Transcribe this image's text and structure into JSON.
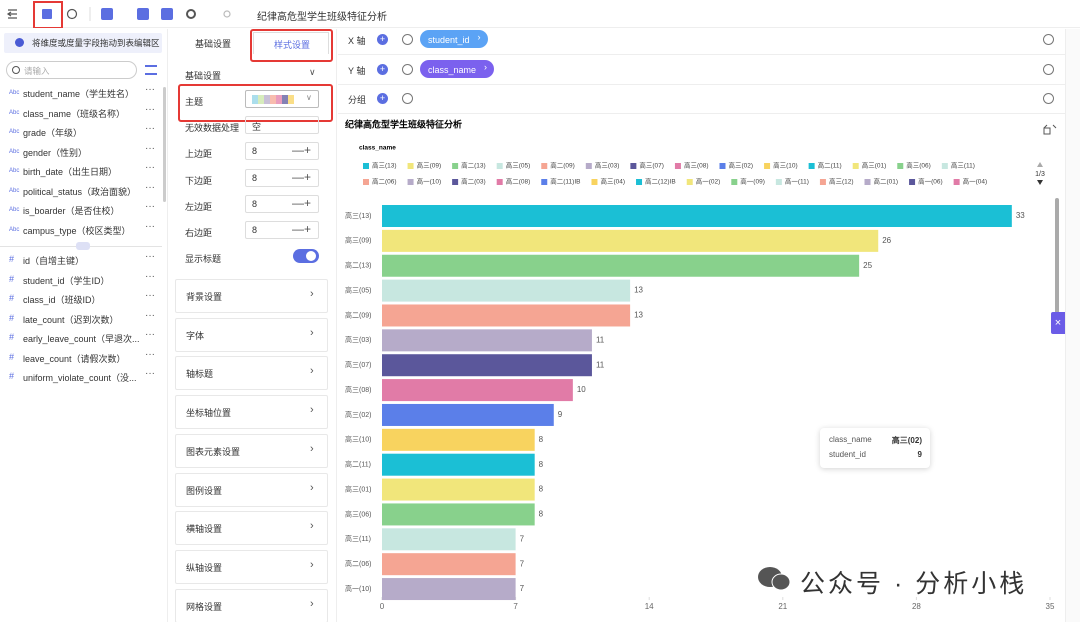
{
  "toolbar": {
    "title": "纪律高危型学生班级特征分析"
  },
  "fields": {
    "hint": "将维度或度量字段拖动到表编辑区",
    "search_placeholder": "请输入",
    "dimension_type": "Abc",
    "dimensions": [
      "student_name（学生姓名）",
      "class_name（班级名称）",
      "grade（年级）",
      "gender（性别）",
      "birth_date（出生日期）",
      "political_status（政治面貌）",
      "is_boarder（是否住校）",
      "campus_type（校区类型）"
    ],
    "measures": [
      "id（自增主键）",
      "student_id（学生ID）",
      "class_id（班级ID）",
      "late_count（迟到次数）",
      "early_leave_count（早退次...",
      "leave_count（请假次数）",
      "uniform_violate_count（没..."
    ]
  },
  "settings": {
    "tabs": [
      "基础设置",
      "样式设置"
    ],
    "section": "基础设置",
    "rows": [
      {
        "label": "主题"
      },
      {
        "label": "无效数据处理",
        "value": "空"
      },
      {
        "label": "上边距",
        "value": 8
      },
      {
        "label": "下边距",
        "value": 8
      },
      {
        "label": "左边距",
        "value": 8
      },
      {
        "label": "右边距",
        "value": 8
      },
      {
        "label": "显示标题"
      }
    ],
    "groups": [
      "背景设置",
      "字体",
      "轴标题",
      "坐标轴位置",
      "图表元素设置",
      "图例设置",
      "横轴设置",
      "纵轴设置",
      "网格设置"
    ]
  },
  "encoding": {
    "x_label": "X 轴",
    "x_field": "student_id",
    "y_label": "Y 轴",
    "y_field": "class_name",
    "group_label": "分组"
  },
  "chart_data": {
    "type": "bar",
    "orientation": "horizontal",
    "title": "纪律高危型学生班级特征分析",
    "legend_title": "class_name",
    "legend_page": "1/3",
    "legend": [
      {
        "name": "高三(13)",
        "color": "#1bbfd5"
      },
      {
        "name": "高三(09)",
        "color": "#f1e67b"
      },
      {
        "name": "高二(13)",
        "color": "#88d18c"
      },
      {
        "name": "高三(05)",
        "color": "#c7e7e0"
      },
      {
        "name": "高二(09)",
        "color": "#f5a593"
      },
      {
        "name": "高三(03)",
        "color": "#b6abc9"
      },
      {
        "name": "高三(07)",
        "color": "#5b579b"
      },
      {
        "name": "高三(08)",
        "color": "#e17ba7"
      },
      {
        "name": "高三(02)",
        "color": "#5b7fe9"
      },
      {
        "name": "高三(10)",
        "color": "#f8d35f"
      },
      {
        "name": "高二(11)",
        "color": "#1bbfd5"
      },
      {
        "name": "高三(01)",
        "color": "#f1e67b"
      },
      {
        "name": "高三(06)",
        "color": "#88d18c"
      },
      {
        "name": "高三(11)",
        "color": "#c7e7e0"
      },
      {
        "name": "高二(06)",
        "color": "#f5a593"
      },
      {
        "name": "高一(10)",
        "color": "#b6abc9"
      },
      {
        "name": "高二(03)",
        "color": "#5b579b"
      },
      {
        "name": "高二(08)",
        "color": "#e17ba7"
      },
      {
        "name": "高二(11)IB",
        "color": "#5b7fe9"
      },
      {
        "name": "高三(04)",
        "color": "#f8d35f"
      },
      {
        "name": "高二(12)IB",
        "color": "#1bbfd5"
      },
      {
        "name": "高一(02)",
        "color": "#f1e67b"
      },
      {
        "name": "高一(09)",
        "color": "#88d18c"
      },
      {
        "name": "高一(11)",
        "color": "#c7e7e0"
      },
      {
        "name": "高三(12)",
        "color": "#f5a593"
      },
      {
        "name": "高二(01)",
        "color": "#b6abc9"
      },
      {
        "name": "高一(06)",
        "color": "#5b579b"
      },
      {
        "name": "高一(04)",
        "color": "#e17ba7"
      }
    ],
    "categories": [
      "高三(13)",
      "高三(09)",
      "高二(13)",
      "高三(05)",
      "高二(09)",
      "高三(03)",
      "高三(07)",
      "高三(08)",
      "高三(02)",
      "高三(10)",
      "高二(11)",
      "高三(01)",
      "高三(06)",
      "高三(11)",
      "高二(06)",
      "高一(10)"
    ],
    "values": [
      33,
      26,
      25,
      13,
      13,
      11,
      11,
      10,
      9,
      8,
      8,
      8,
      8,
      7,
      7,
      7
    ],
    "xlim": [
      0,
      35
    ],
    "xticks": [
      0,
      7,
      14,
      21,
      28,
      35
    ]
  },
  "tooltip": {
    "rows": [
      {
        "label": "class_name",
        "value": "高三(02)"
      },
      {
        "label": "student_id",
        "value": 9
      }
    ]
  },
  "watermark": "公众号 · 分析小栈"
}
